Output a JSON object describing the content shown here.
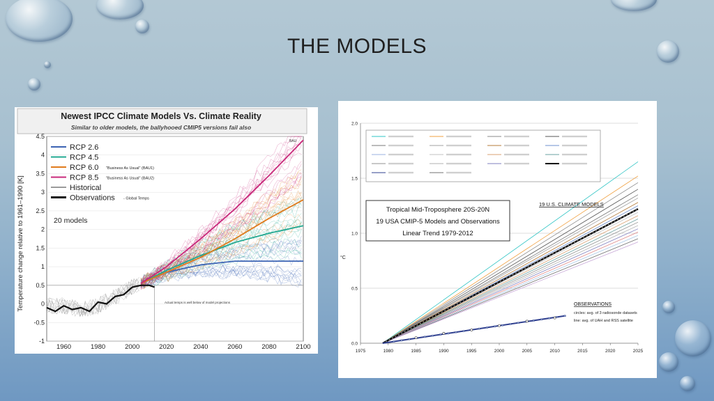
{
  "slide": {
    "title": "THE MODELS"
  },
  "left_chart": {
    "title": "Newest IPCC Climate Models Vs. Climate Reality",
    "subtitle": "Similar to older models, the ballyhooed CMIP5 versions fail also",
    "ylabel": "Temperature change relative to 1961–1990 [K]",
    "count_label": "20 models",
    "annotation": "Actual temps is well below of model projections",
    "end_label": "BAU",
    "colors": {
      "rcp26": "#3b63b3",
      "rcp45": "#20a890",
      "rcp60": "#e07b1c",
      "rcp85": "#c8287a",
      "historical": "#9a9a9a",
      "observations": "#111111"
    },
    "chart_data": {
      "type": "line",
      "xlim": [
        1950,
        2100
      ],
      "ylim": [
        -1,
        4.5
      ],
      "x_ticks": [
        "1960",
        "1980",
        "2000",
        "2020",
        "2040",
        "2060",
        "2080",
        "2100"
      ],
      "y_ticks": [
        "-1",
        "-0.5",
        "0",
        "0.5",
        "1",
        "1.5",
        "2",
        "2.5",
        "3",
        "3.5",
        "4",
        "4.5"
      ],
      "series": [
        {
          "name": "RCP 2.6",
          "x": [
            2005,
            2020,
            2040,
            2060,
            2080,
            2100
          ],
          "y": [
            0.55,
            0.85,
            1.05,
            1.15,
            1.15,
            1.15
          ]
        },
        {
          "name": "RCP 4.5",
          "x": [
            2005,
            2020,
            2040,
            2060,
            2080,
            2100
          ],
          "y": [
            0.55,
            0.9,
            1.3,
            1.65,
            1.9,
            2.1
          ]
        },
        {
          "name": "RCP 6.0",
          "note": "\"Business As Usual\" (BAU1)",
          "x": [
            2005,
            2020,
            2040,
            2060,
            2080,
            2100
          ],
          "y": [
            0.55,
            0.85,
            1.25,
            1.75,
            2.3,
            2.8
          ]
        },
        {
          "name": "RCP 8.5",
          "note": "\"Business As Usual\" (BAU2)",
          "x": [
            2005,
            2020,
            2040,
            2060,
            2080,
            2100
          ],
          "y": [
            0.55,
            1.0,
            1.75,
            2.55,
            3.45,
            4.4
          ]
        },
        {
          "name": "Historical",
          "x": [
            1950,
            1960,
            1970,
            1980,
            1990,
            2000,
            2005
          ],
          "y": [
            -0.05,
            -0.05,
            -0.15,
            -0.05,
            0.2,
            0.45,
            0.55
          ]
        },
        {
          "name": "Observations",
          "note": "- Global Temps",
          "x": [
            1950,
            1955,
            1960,
            1965,
            1970,
            1975,
            1980,
            1985,
            1990,
            1995,
            2000,
            2005,
            2010,
            2013
          ],
          "y": [
            -0.1,
            -0.2,
            -0.05,
            -0.15,
            -0.1,
            -0.2,
            0.05,
            0.0,
            0.2,
            0.25,
            0.45,
            0.5,
            0.5,
            0.45
          ]
        }
      ]
    }
  },
  "right_chart": {
    "box_text": [
      "Tropical Mid-Troposphere 20S-20N",
      "19 USA CMIP-5 Models and Observations",
      "Linear Trend 1979-2012"
    ],
    "models_label": "19 U.S. CLIMATE MODELS",
    "obs_label": "OBSERVATIONS",
    "obs_note_1": "circles: avg. of 3 radiosonde datasets",
    "obs_note_2": "line: avg. of UAH and RSS satellite",
    "ylabel": "°C",
    "chart_data": {
      "type": "line",
      "xlim": [
        1975,
        2025
      ],
      "ylim": [
        0.0,
        2.0
      ],
      "x_ticks": [
        "1975",
        "1980",
        "1985",
        "1990",
        "1995",
        "2000",
        "2005",
        "2010",
        "2015",
        "2020",
        "2025"
      ],
      "y_ticks": [
        "0.0",
        "0.5",
        "1.0",
        "1.5",
        "2.0"
      ],
      "model_trend_ends_2025": [
        1.65,
        1.52,
        1.46,
        1.4,
        1.35,
        1.32,
        1.28,
        1.25,
        1.22,
        1.19,
        1.16,
        1.13,
        1.1,
        1.07,
        1.04,
        1.01,
        0.98,
        0.95,
        0.92
      ],
      "model_colors": [
        "#2ec4c4",
        "#f0a040",
        "#888888",
        "#555555",
        "#777777",
        "#a0a0a0",
        "#b57b3a",
        "#6d8fcf",
        "#9ab0e0",
        "#c0c0c0",
        "#d9a070",
        "#6aa0a0",
        "#909090",
        "#b0b0b0",
        "#7f7fbf",
        "#e08888",
        "#a8c8e8",
        "#707070",
        "#c8a8d8"
      ],
      "model_mean": {
        "name": "Model mean",
        "x": [
          1979,
          2025
        ],
        "y": [
          0.0,
          1.22
        ]
      },
      "observations": {
        "name": "Observations",
        "x": [
          1979,
          2012
        ],
        "y": [
          0.0,
          0.25
        ]
      },
      "observation_circles": {
        "x": [
          1985,
          1990,
          1995,
          2000,
          2005,
          2010
        ],
        "y": [
          0.05,
          0.09,
          0.12,
          0.16,
          0.2,
          0.23
        ]
      }
    }
  }
}
